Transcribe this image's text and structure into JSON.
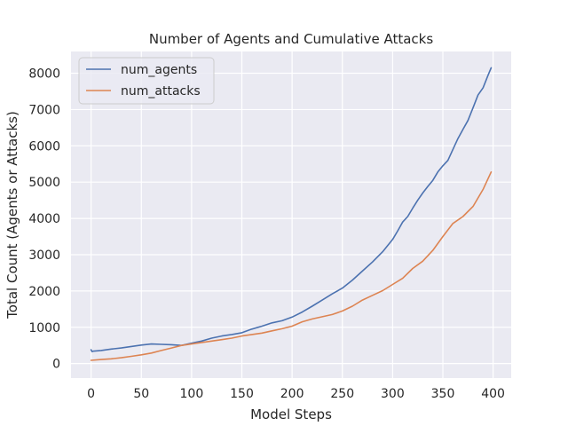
{
  "chart_data": {
    "type": "line",
    "title": "Number of Agents and Cumulative Attacks",
    "xlabel": "Model Steps",
    "ylabel": "Total Count (Agents or Attacks)",
    "xlim": [
      -20,
      418
    ],
    "ylim": [
      -400,
      8600
    ],
    "xticks": [
      0,
      50,
      100,
      150,
      200,
      250,
      300,
      350,
      400
    ],
    "yticks": [
      0,
      1000,
      2000,
      3000,
      4000,
      5000,
      6000,
      7000,
      8000
    ],
    "grid": true,
    "legend_position": "top-left",
    "series": [
      {
        "name": "num_agents",
        "color": "#4c72b0",
        "x": [
          0,
          1,
          2,
          10,
          20,
          30,
          40,
          50,
          60,
          70,
          80,
          90,
          100,
          110,
          120,
          130,
          140,
          150,
          160,
          170,
          180,
          190,
          200,
          210,
          220,
          230,
          240,
          250,
          260,
          270,
          280,
          290,
          300,
          305,
          310,
          315,
          320,
          325,
          330,
          335,
          340,
          345,
          350,
          355,
          360,
          365,
          370,
          375,
          380,
          385,
          390,
          395,
          398
        ],
        "y": [
          380,
          330,
          340,
          360,
          400,
          430,
          470,
          510,
          540,
          530,
          520,
          500,
          560,
          620,
          700,
          760,
          800,
          850,
          950,
          1030,
          1120,
          1180,
          1280,
          1420,
          1580,
          1750,
          1920,
          2080,
          2300,
          2550,
          2800,
          3080,
          3420,
          3650,
          3900,
          4050,
          4280,
          4500,
          4700,
          4880,
          5050,
          5280,
          5450,
          5600,
          5900,
          6200,
          6450,
          6700,
          7050,
          7400,
          7600,
          7950,
          8150
        ]
      },
      {
        "name": "num_attacks",
        "color": "#dd8452",
        "x": [
          0,
          10,
          20,
          30,
          40,
          50,
          60,
          70,
          80,
          90,
          100,
          110,
          120,
          130,
          140,
          150,
          160,
          170,
          180,
          190,
          200,
          210,
          220,
          230,
          240,
          250,
          260,
          270,
          280,
          290,
          300,
          310,
          320,
          330,
          340,
          350,
          360,
          370,
          380,
          390,
          398
        ],
        "y": [
          90,
          110,
          130,
          160,
          200,
          240,
          290,
          360,
          430,
          500,
          540,
          580,
          620,
          660,
          700,
          760,
          800,
          840,
          900,
          960,
          1030,
          1150,
          1230,
          1290,
          1350,
          1450,
          1580,
          1750,
          1880,
          2010,
          2180,
          2350,
          2620,
          2820,
          3120,
          3500,
          3860,
          4050,
          4330,
          4800,
          5280
        ]
      }
    ]
  }
}
